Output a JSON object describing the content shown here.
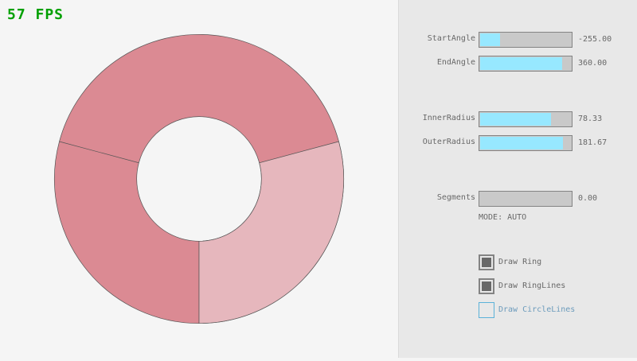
{
  "fps": "57 FPS",
  "ring": {
    "start_angle": -255,
    "end_angle": 360,
    "inner_radius": 78.33,
    "outer_radius": 181.67,
    "color_dark": "#db8a93",
    "color_light": "#e6b7bd"
  },
  "controls": {
    "sliders": [
      {
        "label": "StartAngle",
        "value": "-255.00",
        "fraction": 0.22
      },
      {
        "label": "EndAngle",
        "value": "360.00",
        "fraction": 0.9
      },
      {
        "label": "InnerRadius",
        "value": "78.33",
        "fraction": 0.78
      },
      {
        "label": "OuterRadius",
        "value": "181.67",
        "fraction": 0.91
      },
      {
        "label": "Segments",
        "value": "0.00",
        "fraction": 0
      }
    ],
    "mode": "MODE: AUTO",
    "checkboxes": [
      {
        "label": "Draw Ring",
        "checked": true
      },
      {
        "label": "Draw RingLines",
        "checked": true
      },
      {
        "label": "Draw CircleLines",
        "checked": false
      }
    ]
  }
}
